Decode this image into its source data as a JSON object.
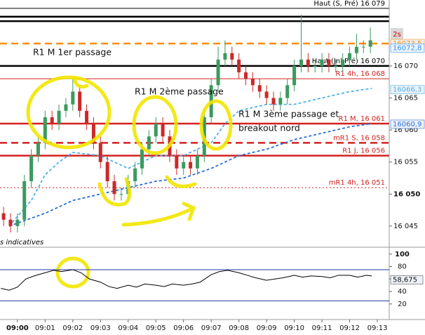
{
  "chart_data": {
    "type": "candlestick",
    "x": [
      -0.5,
      -0.25,
      0,
      0.25,
      0.5,
      0.75,
      1,
      1.25,
      1.5,
      1.75,
      2,
      2.25,
      2.5,
      2.75,
      3,
      3.25,
      3.5,
      3.75,
      4,
      4.25,
      4.5,
      4.75,
      5,
      5.25,
      5.5,
      5.75,
      6,
      6.25,
      6.5,
      6.75,
      7,
      7.25,
      7.5,
      7.75,
      8,
      8.25,
      8.5,
      8.75,
      9,
      9.25,
      9.5,
      9.75,
      10,
      10.25,
      10.5,
      10.75,
      11,
      11.25,
      11.5,
      11.75,
      12,
      12.25,
      12.5,
      12.75
    ],
    "open": [
      16047,
      16046,
      16045,
      16046,
      16052,
      16056,
      16058,
      16062,
      16061,
      16063,
      16064,
      16066,
      16063,
      16061,
      16058,
      16055,
      16052,
      16050,
      16050,
      16052,
      16054,
      16057,
      16059,
      16061,
      16059,
      16056,
      16054,
      16055,
      16054,
      16056,
      16062,
      16067,
      16071,
      16072,
      16071,
      16069,
      16068,
      16067,
      16066,
      16065,
      16064,
      16065,
      16067,
      16070,
      16071,
      16070,
      16070,
      16071,
      16070,
      16070,
      16071,
      16072,
      16073,
      16073
    ],
    "high": [
      16048,
      16047,
      16047,
      16053,
      16057,
      16059,
      16063,
      16063,
      16064,
      16065,
      16068,
      16067,
      16064,
      16062,
      16059,
      16056,
      16053,
      16051,
      16053,
      16055,
      16058,
      16060,
      16062,
      16062,
      16060,
      16057,
      16056,
      16056,
      16057,
      16063,
      16068,
      16073,
      16074,
      16073,
      16072,
      16070,
      16069,
      16068,
      16067,
      16066,
      16066,
      16068,
      16071,
      16078,
      16072,
      16071,
      16072,
      16072,
      16071,
      16072,
      16073,
      16075,
      16074,
      16076
    ],
    "low": [
      16045,
      16044,
      16044,
      16045,
      16051,
      16055,
      16057,
      16060,
      16060,
      16062,
      16063,
      16062,
      16060,
      16057,
      16054,
      16051,
      16049,
      16049,
      16049,
      16051,
      16053,
      16056,
      16058,
      16058,
      16055,
      16053,
      16053,
      16053,
      16053,
      16055,
      16061,
      16066,
      16070,
      16070,
      16068,
      16067,
      16066,
      16065,
      16064,
      16063,
      16063,
      16064,
      16066,
      16069,
      16069,
      16069,
      16069,
      16069,
      16069,
      16069,
      16070,
      16071,
      16072,
      16072
    ],
    "close": [
      16046,
      16045,
      16046,
      16052,
      16056,
      16058,
      16062,
      16061,
      16063,
      16064,
      16066,
      16063,
      16061,
      16058,
      16055,
      16052,
      16050,
      16050,
      16052,
      16054,
      16057,
      16059,
      16061,
      16059,
      16056,
      16054,
      16055,
      16054,
      16056,
      16062,
      16067,
      16071,
      16072,
      16071,
      16069,
      16068,
      16067,
      16066,
      16065,
      16064,
      16065,
      16067,
      16070,
      16071,
      16070,
      16070,
      16071,
      16070,
      16070,
      16071,
      16072,
      16073,
      16073,
      16074
    ],
    "up_color": "#3c9a5f",
    "down_color": "#cc2929",
    "xlim": [
      -0.63,
      13.43
    ],
    "xticks": [
      {
        "value": 0,
        "label": "09:00"
      },
      {
        "value": 1,
        "label": "09:01"
      },
      {
        "value": 2,
        "label": "09:02"
      },
      {
        "value": 3,
        "label": "09:03"
      },
      {
        "value": 4,
        "label": "09:04"
      },
      {
        "value": 5,
        "label": "09:05"
      },
      {
        "value": 6,
        "label": "09:06"
      },
      {
        "value": 7,
        "label": "09:07"
      },
      {
        "value": 8,
        "label": "09:08"
      },
      {
        "value": 9,
        "label": "09:09"
      },
      {
        "value": 10,
        "label": "09:10"
      },
      {
        "value": 11,
        "label": "09:11"
      },
      {
        "value": 12,
        "label": "09:12"
      },
      {
        "value": 13,
        "label": "09:13"
      }
    ],
    "ylim": [
      16041.7,
      16080.3
    ],
    "yticks": [
      {
        "value": 16045,
        "label": "16 045"
      },
      {
        "value": 16050,
        "label": "16 050"
      },
      {
        "value": 16055,
        "label": "16 055"
      },
      {
        "value": 16060,
        "label": "16 060"
      },
      {
        "value": 16065,
        "label": "16 065"
      },
      {
        "value": 16070,
        "label": "16 070"
      }
    ],
    "levels": [
      {
        "value": 16079,
        "label": "Haut (S, Pré) 16 079",
        "color": "#000000",
        "style": "solid"
      },
      {
        "value": 16077.7,
        "color": "#000000",
        "style": "thick"
      },
      {
        "value": 16077,
        "color": "#000000",
        "style": "thick"
      },
      {
        "value": 16073.5,
        "color": "#ff8c00",
        "style": "thick-dashed"
      },
      {
        "value": 16070,
        "label": "Haut (Jnl Pré) 16 070",
        "color": "#000000",
        "style": "thick"
      },
      {
        "value": 16068,
        "label": "R1 4h, 16 068",
        "color": "#d42020",
        "style": "solid"
      },
      {
        "value": 16061,
        "label": "R1 M, 16 061",
        "color": "#d42020",
        "style": "thick"
      },
      {
        "value": 16058,
        "label": "mR1 S, 16 058",
        "color": "#d42020",
        "style": "thick-dashed"
      },
      {
        "value": 16056,
        "label": "R1 J, 16 056",
        "color": "#d42020",
        "style": "thick"
      },
      {
        "value": 16051,
        "label": "mR1 4h, 16 051",
        "color": "#d42020",
        "style": "dotted"
      }
    ],
    "moving_averages": [
      {
        "color": "#4fb0ea",
        "x": [
          -0.3,
          0.5,
          1,
          1.5,
          2,
          3,
          4,
          5,
          6,
          7,
          7.5,
          8,
          9,
          10,
          11,
          12,
          12.8
        ],
        "values": [
          16045,
          16049,
          16053,
          16055,
          16056.5,
          16056,
          16054,
          16056,
          16056,
          16058,
          16061,
          16063,
          16064,
          16064,
          16065,
          16066,
          16066.5
        ]
      },
      {
        "color": "#2a6fd6",
        "x": [
          -0.3,
          1,
          2,
          3,
          4,
          5,
          6,
          7,
          8,
          9,
          10,
          11,
          12,
          12.8
        ],
        "values": [
          16045,
          16047,
          16049,
          16050,
          16051,
          16052,
          16052.5,
          16054,
          16056,
          16057,
          16058.5,
          16059.5,
          16060.5,
          16061
        ]
      }
    ],
    "price_tags": [
      {
        "value": 16073.5,
        "label": "16073,5",
        "color": "#ff8c00"
      },
      {
        "value": 16072.8,
        "label": "16072,8",
        "color": "#3399ff"
      },
      {
        "value": 16066.3,
        "label": "16066,3",
        "color": "#4fb0ea"
      },
      {
        "value": 16060.9,
        "label": "16060,9",
        "color": "#2a6fd6"
      }
    ],
    "timer_label": "2s",
    "annotations": [
      "R1 M 1er passage",
      "R1 M 2ème passage",
      "R1 M 3ème passage et",
      "breakout nord",
      "s indicatives"
    ],
    "indicator": {
      "type": "line",
      "color": "#000000",
      "x": [
        -0.6,
        -0.3,
        0,
        0.3,
        0.6,
        1,
        1.3,
        1.6,
        2,
        2.3,
        2.6,
        3,
        3.3,
        3.6,
        4,
        4.3,
        4.6,
        5,
        5.3,
        5.6,
        6,
        6.3,
        6.6,
        7,
        7.3,
        7.6,
        8,
        8.3,
        8.6,
        9,
        9.3,
        9.6,
        10,
        10.3,
        10.6,
        11,
        11.3,
        11.6,
        12,
        12.3,
        12.6,
        12.8
      ],
      "values": [
        45,
        42,
        47,
        60,
        65,
        70,
        74,
        72,
        75,
        70,
        60,
        55,
        48,
        45,
        50,
        47,
        52,
        50,
        48,
        52,
        50,
        52,
        55,
        67,
        72,
        74,
        70,
        66,
        62,
        58,
        60,
        62,
        66,
        63,
        65,
        64,
        62,
        66,
        66,
        63,
        66,
        65
      ],
      "ylim": [
        -5,
        111
      ],
      "yticks": [
        20,
        40,
        60,
        80,
        100
      ],
      "levels": [
        25,
        75
      ],
      "level_color": "#2233aa",
      "value_tag": {
        "value": 58.675,
        "label": "58,675"
      }
    }
  }
}
